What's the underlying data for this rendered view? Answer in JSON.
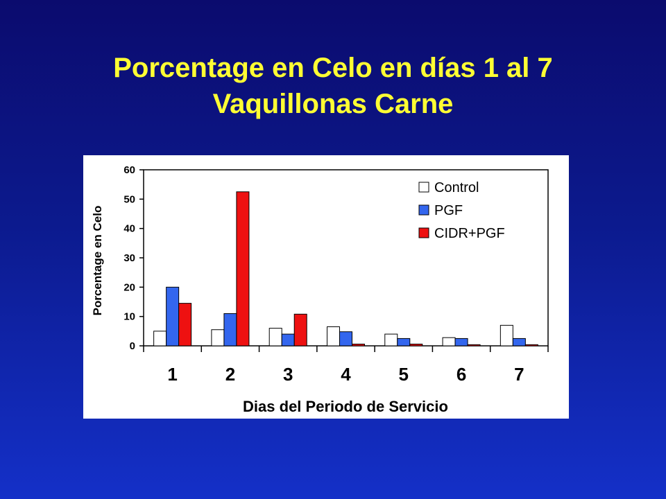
{
  "slide": {
    "title_line1": "Porcentage en Celo en días 1 al 7",
    "title_line2": "Vaquillonas Carne"
  },
  "colors": {
    "title": "#ffff33",
    "control": "#ffffff",
    "pgf": "#3366ee",
    "cidr_pgf": "#ee1111"
  },
  "chart_data": {
    "type": "bar",
    "xlabel": "Dias del Periodo de Servicio",
    "ylabel": "Porcentage en Celo",
    "categories": [
      "1",
      "2",
      "3",
      "4",
      "5",
      "6",
      "7"
    ],
    "ylim": [
      0,
      60
    ],
    "yticks": [
      0,
      10,
      20,
      30,
      40,
      50,
      60
    ],
    "legend_position": "top-right",
    "grid": false,
    "series": [
      {
        "name": "Control",
        "color": "#ffffff",
        "values": [
          5,
          5.5,
          6,
          6.5,
          4,
          2.8,
          7
        ]
      },
      {
        "name": "PGF",
        "color": "#3366ee",
        "values": [
          20,
          11,
          4,
          4.8,
          2.5,
          2.5,
          2.5
        ]
      },
      {
        "name": "CIDR+PGF",
        "color": "#ee1111",
        "values": [
          14.5,
          52.5,
          10.8,
          0.6,
          0.6,
          0.4,
          0.4
        ]
      }
    ]
  }
}
